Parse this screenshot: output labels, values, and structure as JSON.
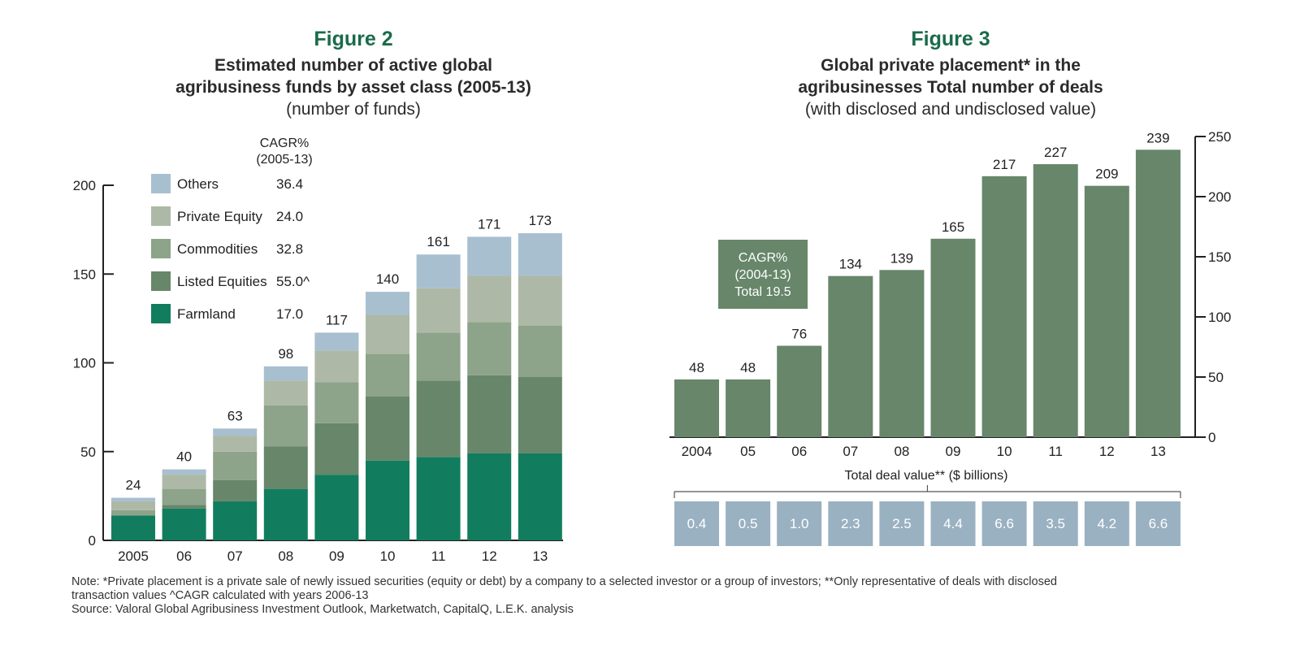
{
  "figure2": {
    "label": "Figure 2",
    "title_line1": "Estimated number of active global",
    "title_line2": "agribusiness funds by asset class (2005-13)",
    "subtitle": "(number of funds)",
    "cagr_header_line1": "CAGR%",
    "cagr_header_line2": "(2005-13)"
  },
  "figure3": {
    "label": "Figure 3",
    "title_line1": "Global private placement* in the",
    "title_line2": "agribusinesses Total number of deals",
    "subtitle": "(with disclosed and undisclosed value)",
    "cagr_box_line1": "CAGR%",
    "cagr_box_line2": "(2004-13)",
    "cagr_box_line3": "Total 19.5",
    "deal_value_label": "Total deal value** ($ billions)"
  },
  "notes": {
    "note_line1": "Note: *Private placement is a private sale of newly issued securities (equity or debt) by a company to a selected investor or a group of investors; **Only representative of deals with disclosed",
    "note_line2": "transaction values ^CAGR calculated with years 2006-13",
    "source": "Source: Valoral Global Agribusiness Investment Outlook, Marketwatch, CapitalQ, L.E.K. analysis"
  },
  "chart_data": [
    {
      "type": "bar",
      "stacked": true,
      "title": "Estimated number of active global agribusiness funds by asset class (2005-13)",
      "ylim": [
        0,
        200
      ],
      "yticks": [
        "0",
        "50",
        "100",
        "150",
        "200"
      ],
      "categories": [
        "2005",
        "06",
        "07",
        "08",
        "09",
        "10",
        "11",
        "12",
        "13"
      ],
      "totals": [
        24,
        40,
        63,
        98,
        117,
        140,
        161,
        171,
        173
      ],
      "series": [
        {
          "name": "Farmland",
          "cagr": "17.0",
          "color": "#127d5e",
          "values": [
            14,
            18,
            22,
            29,
            37,
            45,
            47,
            49,
            49
          ]
        },
        {
          "name": "Listed Equities",
          "cagr": "55.0^",
          "color": "#67866a",
          "values": [
            0,
            2,
            12,
            24,
            29,
            36,
            43,
            44,
            43
          ]
        },
        {
          "name": "Commodities",
          "cagr": "32.8",
          "color": "#8da38a",
          "values": [
            3,
            9,
            16,
            23,
            23,
            24,
            27,
            30,
            29
          ]
        },
        {
          "name": "Private Equity",
          "cagr": "24.0",
          "color": "#adb9a6",
          "values": [
            5,
            8,
            9,
            14,
            18,
            22,
            25,
            26,
            28
          ]
        },
        {
          "name": "Others",
          "cagr": "36.4",
          "color": "#a8bfd0",
          "values": [
            2,
            3,
            4,
            8,
            10,
            13,
            19,
            22,
            24
          ]
        }
      ]
    },
    {
      "type": "bar",
      "title": "Global private placement* in the agribusinesses Total number of deals",
      "ylim": [
        0,
        250
      ],
      "yticks": [
        "0",
        "50",
        "100",
        "150",
        "200",
        "250"
      ],
      "bar_color": "#67866a",
      "categories": [
        "2004",
        "05",
        "06",
        "07",
        "08",
        "09",
        "10",
        "11",
        "12",
        "13"
      ],
      "values": [
        48,
        48,
        76,
        134,
        139,
        165,
        217,
        227,
        209,
        239
      ],
      "deal_values": [
        "0.4",
        "0.5",
        "1.0",
        "2.3",
        "2.5",
        "4.4",
        "6.6",
        "3.5",
        "4.2",
        "6.6"
      ],
      "deal_value_color": "#9ab1c2"
    }
  ]
}
